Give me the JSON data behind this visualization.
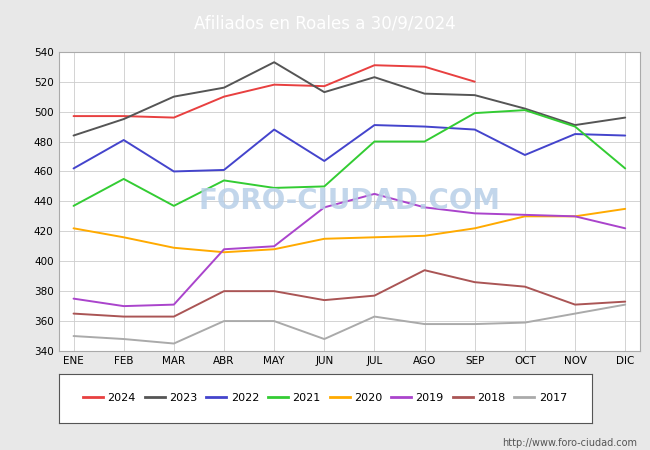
{
  "title": "Afiliados en Roales a 30/9/2024",
  "title_bg_color": "#4a8fd4",
  "title_text_color": "white",
  "ylim": [
    340,
    540
  ],
  "yticks": [
    340,
    360,
    380,
    400,
    420,
    440,
    460,
    480,
    500,
    520,
    540
  ],
  "months": [
    "ENE",
    "FEB",
    "MAR",
    "ABR",
    "MAY",
    "JUN",
    "JUL",
    "AGO",
    "SEP",
    "OCT",
    "NOV",
    "DIC"
  ],
  "series": {
    "2024": {
      "color": "#e84040",
      "data": [
        497,
        497,
        496,
        510,
        518,
        517,
        531,
        530,
        520,
        null,
        null,
        null
      ]
    },
    "2023": {
      "color": "#555555",
      "data": [
        484,
        495,
        510,
        516,
        533,
        513,
        523,
        512,
        511,
        502,
        491,
        496
      ]
    },
    "2022": {
      "color": "#4444cc",
      "data": [
        462,
        481,
        460,
        461,
        488,
        467,
        491,
        490,
        488,
        471,
        485,
        484
      ]
    },
    "2021": {
      "color": "#33cc33",
      "data": [
        437,
        455,
        437,
        454,
        449,
        450,
        480,
        480,
        499,
        501,
        490,
        462
      ]
    },
    "2020": {
      "color": "#ffaa00",
      "data": [
        422,
        416,
        409,
        406,
        408,
        415,
        416,
        417,
        422,
        430,
        430,
        435
      ]
    },
    "2019": {
      "color": "#aa44cc",
      "data": [
        375,
        370,
        371,
        408,
        410,
        436,
        445,
        436,
        432,
        431,
        430,
        422
      ]
    },
    "2018": {
      "color": "#aa5555",
      "data": [
        365,
        363,
        363,
        380,
        380,
        374,
        377,
        394,
        386,
        383,
        371,
        373
      ]
    },
    "2017": {
      "color": "#aaaaaa",
      "data": [
        350,
        348,
        345,
        360,
        360,
        348,
        363,
        358,
        358,
        359,
        365,
        371
      ]
    }
  },
  "watermark": "FORO-CIUDAD.COM",
  "footnote": "http://www.foro-ciudad.com",
  "outer_bg_color": "#e8e8e8",
  "plot_bg_color": "#ffffff",
  "grid_color": "#cccccc"
}
